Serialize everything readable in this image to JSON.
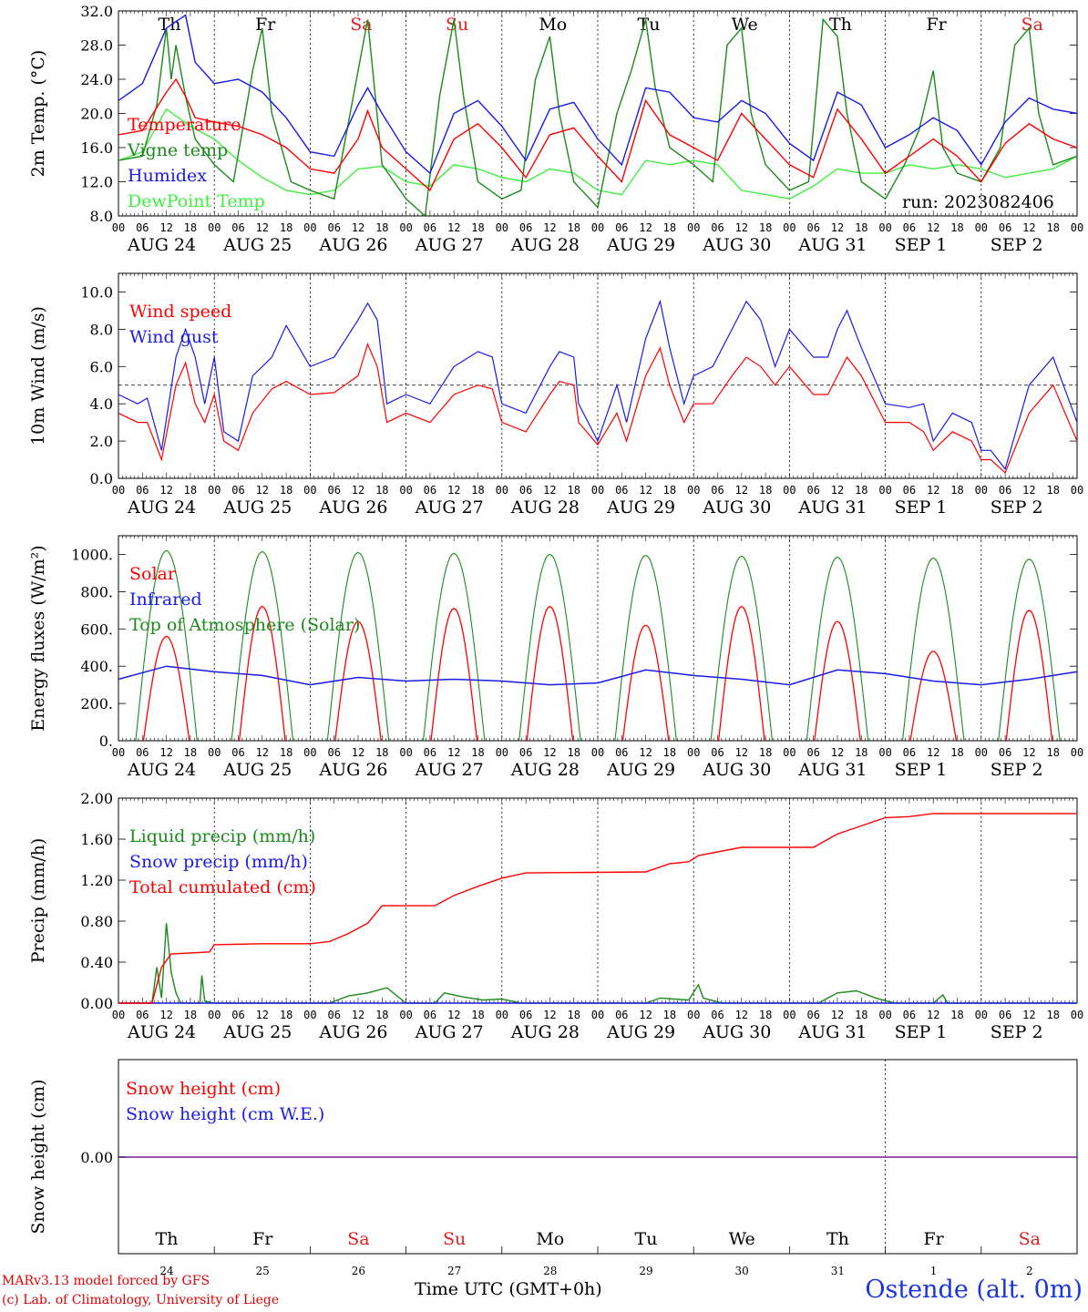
{
  "meta": {
    "run": "run: 2023082406",
    "xlabel": "Time UTC (GMT+0h)",
    "station": "Ostende (alt. 0m)",
    "credit_line1": "MARv3.13 model forced by GFS",
    "credit_line2": "(c) Lab. of Climatology, University of Liege"
  },
  "time_axis": {
    "hour_ticks": [
      "00",
      "06",
      "12",
      "18"
    ],
    "days": [
      "AUG 24",
      "AUG 25",
      "AUG 26",
      "AUG 27",
      "AUG 28",
      "AUG 29",
      "AUG 30",
      "AUG 31",
      "SEP 1",
      "SEP 2"
    ],
    "weekdays": [
      "Th",
      "Fr",
      "Sa",
      "Su",
      "Mo",
      "Tu",
      "We",
      "Th",
      "Fr",
      "Sa"
    ],
    "weekend_days": [
      "Sa",
      "Su"
    ],
    "day_numbers": [
      "24",
      "25",
      "26",
      "27",
      "28",
      "29",
      "30",
      "31",
      "1",
      "2"
    ]
  },
  "colors": {
    "red": "#ff0000",
    "green": "#1a8a1a",
    "blue": "#1a1ae6",
    "lime": "#3ef03e",
    "purple": "#7a1a9a",
    "weekend": "#e02020"
  },
  "chart_data": [
    {
      "type": "line",
      "ylabel": "2m Temp. (°C)",
      "ylim": [
        8,
        32
      ],
      "yticks": [
        "8.0",
        "12.0",
        "16.0",
        "20.0",
        "24.0",
        "28.0",
        "32.0"
      ],
      "x_unit": "day index from Aug 24 00 UTC",
      "series": [
        {
          "name": "Temperature",
          "color": "red",
          "x": [
            0,
            0.25,
            0.5,
            0.6,
            0.7,
            0.8,
            1,
            1.25,
            1.5,
            1.75,
            2,
            2.25,
            2.5,
            2.6,
            2.75,
            3,
            3.25,
            3.5,
            3.75,
            4,
            4.25,
            4.5,
            4.75,
            5,
            5.25,
            5.5,
            5.75,
            6,
            6.25,
            6.5,
            6.75,
            7,
            7.25,
            7.5,
            7.75,
            8,
            8.25,
            8.5,
            8.75,
            9,
            9.25,
            9.5,
            9.75,
            10
          ],
          "y": [
            17.5,
            18.0,
            22.5,
            24.0,
            22.0,
            19.5,
            19.0,
            18.5,
            17.5,
            16.0,
            13.5,
            13.0,
            17.0,
            20.3,
            16.0,
            13.5,
            11.0,
            17.0,
            18.8,
            16.0,
            12.5,
            17.5,
            18.3,
            15.0,
            12.0,
            21.5,
            17.5,
            16.0,
            14.5,
            20.0,
            17.0,
            14.0,
            12.5,
            20.5,
            17.0,
            13.0,
            15.0,
            17.0,
            15.0,
            12.0,
            16.5,
            18.8,
            17.0,
            16.0
          ]
        },
        {
          "name": "Vigne temp",
          "color": "green",
          "x": [
            0,
            0.25,
            0.4,
            0.5,
            0.55,
            0.6,
            0.7,
            0.8,
            1,
            1.2,
            1.4,
            1.5,
            1.6,
            1.8,
            2,
            2.25,
            2.4,
            2.5,
            2.6,
            2.75,
            3,
            3.2,
            3.35,
            3.5,
            3.6,
            3.75,
            4,
            4.2,
            4.35,
            4.5,
            4.6,
            4.75,
            5,
            5.2,
            5.35,
            5.5,
            5.6,
            5.75,
            6,
            6.2,
            6.35,
            6.5,
            6.6,
            6.75,
            7,
            7.2,
            7.35,
            7.5,
            7.6,
            7.75,
            8,
            8.2,
            8.35,
            8.5,
            8.6,
            8.75,
            9,
            9.2,
            9.35,
            9.5,
            9.6,
            9.75,
            10
          ],
          "y": [
            14.5,
            15.0,
            21.0,
            30.0,
            24.0,
            28.0,
            22.0,
            17.0,
            14.0,
            12.0,
            25.0,
            30.0,
            20.0,
            12.0,
            11.0,
            10.0,
            19.0,
            25.0,
            31.0,
            14.0,
            10.0,
            8.0,
            22.0,
            31.0,
            22.0,
            12.0,
            10.0,
            11.0,
            24.0,
            29.0,
            20.0,
            12.0,
            9.0,
            20.0,
            25.0,
            31.0,
            23.0,
            16.0,
            14.0,
            12.0,
            28.0,
            30.0,
            20.0,
            14.0,
            11.0,
            12.0,
            31.0,
            29.0,
            20.0,
            12.0,
            10.0,
            14.0,
            18.0,
            25.0,
            16.0,
            13.0,
            12.0,
            16.0,
            28.0,
            30.0,
            20.0,
            14.0,
            15.0
          ]
        },
        {
          "name": "Humidex",
          "color": "blue",
          "x": [
            0,
            0.25,
            0.5,
            0.7,
            0.8,
            1,
            1.25,
            1.5,
            1.75,
            2,
            2.25,
            2.5,
            2.6,
            2.75,
            3,
            3.25,
            3.5,
            3.75,
            4,
            4.25,
            4.5,
            4.75,
            5,
            5.25,
            5.5,
            5.75,
            6,
            6.25,
            6.5,
            6.75,
            7,
            7.25,
            7.5,
            7.75,
            8,
            8.25,
            8.5,
            8.75,
            9,
            9.25,
            9.5,
            9.75,
            10
          ],
          "y": [
            21.5,
            23.5,
            30.0,
            31.5,
            26.0,
            23.5,
            24.0,
            22.5,
            19.5,
            15.5,
            15.0,
            21.0,
            23.0,
            20.0,
            15.5,
            13.0,
            20.0,
            21.5,
            18.5,
            14.5,
            20.5,
            21.3,
            17.0,
            14.0,
            23.0,
            22.5,
            19.5,
            19.0,
            21.5,
            20.0,
            16.5,
            14.5,
            22.5,
            21.0,
            16.0,
            17.5,
            19.5,
            18.0,
            14.0,
            19.0,
            21.8,
            20.5,
            20.0
          ]
        },
        {
          "name": "DewPoint Temp",
          "color": "lime",
          "x": [
            0,
            0.25,
            0.5,
            0.75,
            1,
            1.25,
            1.5,
            1.75,
            2,
            2.25,
            2.5,
            2.75,
            3,
            3.25,
            3.5,
            3.75,
            4,
            4.25,
            4.5,
            4.75,
            5,
            5.25,
            5.5,
            5.75,
            6,
            6.25,
            6.5,
            6.75,
            7,
            7.25,
            7.5,
            7.75,
            8,
            8.25,
            8.5,
            8.75,
            9,
            9.25,
            9.5,
            9.75,
            10
          ],
          "y": [
            14.5,
            15.5,
            20.5,
            18.5,
            17.0,
            14.5,
            12.5,
            11.0,
            10.5,
            11.0,
            13.5,
            13.8,
            12.0,
            11.5,
            14.0,
            13.5,
            12.5,
            12.0,
            13.5,
            13.0,
            11.0,
            10.5,
            14.5,
            14.0,
            14.5,
            14.0,
            11.0,
            10.5,
            10.0,
            11.5,
            13.5,
            13.0,
            13.0,
            14.0,
            13.5,
            14.0,
            13.5,
            12.5,
            13.0,
            13.5,
            15.0
          ]
        }
      ]
    },
    {
      "type": "line",
      "ylabel": "10m Wind (m/s)",
      "ylim": [
        0,
        11
      ],
      "yticks": [
        "0.0",
        "2.0",
        "4.0",
        "6.0",
        "8.0",
        "10.0"
      ],
      "reference_line": 5.0,
      "series": [
        {
          "name": "Wind speed",
          "color": "red",
          "x": [
            0,
            0.2,
            0.3,
            0.45,
            0.6,
            0.7,
            0.8,
            0.9,
            1,
            1.1,
            1.25,
            1.4,
            1.6,
            1.75,
            2,
            2.25,
            2.5,
            2.6,
            2.7,
            2.8,
            3,
            3.25,
            3.5,
            3.75,
            3.9,
            4,
            4.25,
            4.5,
            4.6,
            4.75,
            4.8,
            5,
            5.2,
            5.3,
            5.5,
            5.65,
            5.75,
            5.9,
            6,
            6.2,
            6.4,
            6.55,
            6.7,
            6.85,
            7,
            7.25,
            7.4,
            7.5,
            7.6,
            7.75,
            8,
            8.25,
            8.4,
            8.5,
            8.7,
            8.9,
            9,
            9.1,
            9.25,
            9.5,
            9.75,
            10
          ],
          "y": [
            3.5,
            3.0,
            3.0,
            1.0,
            5.0,
            6.2,
            4.0,
            3.0,
            4.5,
            2.0,
            1.5,
            3.5,
            4.8,
            5.2,
            4.5,
            4.6,
            5.5,
            7.2,
            6.0,
            3.0,
            3.5,
            3.0,
            4.5,
            5.0,
            4.8,
            3.0,
            2.5,
            4.5,
            5.2,
            5.0,
            3.0,
            1.8,
            3.5,
            2.0,
            5.5,
            7.0,
            5.0,
            3.0,
            4.0,
            4.0,
            5.5,
            6.5,
            6.0,
            5.0,
            6.0,
            4.5,
            4.5,
            5.5,
            6.5,
            5.5,
            3.0,
            3.0,
            2.5,
            1.5,
            2.5,
            2.0,
            1.0,
            1.0,
            0.3,
            3.5,
            5.0,
            2.0
          ]
        },
        {
          "name": "Wind gust",
          "color": "blue",
          "x": [
            0,
            0.2,
            0.3,
            0.45,
            0.6,
            0.7,
            0.8,
            0.9,
            1,
            1.1,
            1.25,
            1.4,
            1.6,
            1.75,
            2,
            2.25,
            2.5,
            2.6,
            2.7,
            2.8,
            3,
            3.25,
            3.5,
            3.75,
            3.9,
            4,
            4.25,
            4.5,
            4.6,
            4.75,
            4.8,
            5,
            5.2,
            5.3,
            5.5,
            5.65,
            5.75,
            5.9,
            6,
            6.2,
            6.4,
            6.55,
            6.7,
            6.85,
            7,
            7.25,
            7.4,
            7.5,
            7.6,
            7.75,
            8,
            8.25,
            8.4,
            8.5,
            8.7,
            8.9,
            9,
            9.1,
            9.25,
            9.5,
            9.75,
            10
          ],
          "y": [
            4.5,
            4.0,
            4.3,
            1.5,
            6.5,
            8.0,
            6.5,
            4.0,
            6.5,
            2.5,
            2.0,
            5.5,
            6.5,
            8.2,
            6.0,
            6.5,
            8.5,
            9.4,
            8.5,
            4.0,
            4.5,
            4.0,
            6.0,
            6.8,
            6.5,
            4.0,
            3.5,
            6.0,
            6.8,
            6.5,
            4.0,
            2.0,
            5.0,
            3.0,
            7.5,
            9.5,
            7.0,
            4.0,
            5.5,
            6.0,
            8.0,
            9.5,
            8.5,
            6.0,
            8.0,
            6.5,
            6.5,
            8.0,
            9.0,
            7.0,
            4.0,
            3.8,
            4.0,
            2.0,
            3.5,
            3.0,
            1.5,
            1.5,
            0.5,
            5.0,
            6.5,
            3.0
          ]
        }
      ]
    },
    {
      "type": "line",
      "ylabel": "Energy fluxes (W/m²)",
      "ylim": [
        0,
        1100
      ],
      "yticks": [
        "0.",
        "200.",
        "400.",
        "600.",
        "800.",
        "1000."
      ],
      "series": [
        {
          "name": "Solar",
          "color": "red",
          "daily_peak": [
            560,
            720,
            640,
            710,
            720,
            620,
            720,
            640,
            480,
            700
          ]
        },
        {
          "name": "Infrared",
          "color": "blue",
          "x": [
            0,
            0.5,
            1,
            1.5,
            2,
            2.5,
            3,
            3.5,
            4,
            4.5,
            5,
            5.5,
            6,
            6.5,
            7,
            7.5,
            8,
            8.5,
            9,
            9.5,
            10
          ],
          "y": [
            330,
            400,
            370,
            350,
            300,
            340,
            320,
            330,
            320,
            300,
            310,
            380,
            350,
            330,
            300,
            380,
            360,
            320,
            300,
            330,
            370
          ]
        },
        {
          "name": "Top of Atmosphere (Solar)",
          "color": "green",
          "daily_peak": [
            1020,
            1015,
            1010,
            1005,
            1000,
            995,
            990,
            985,
            980,
            975
          ]
        }
      ]
    },
    {
      "type": "line",
      "ylabel": "Precip",
      "ylabel_units": "(mm/h)",
      "ylim": [
        0,
        2.0
      ],
      "yticks": [
        "0.00",
        "0.40",
        "0.80",
        "1.20",
        "1.60",
        "2.00"
      ],
      "series": [
        {
          "name": "Liquid precip (mm/h)",
          "color": "green",
          "x": [
            0,
            0.35,
            0.4,
            0.45,
            0.5,
            0.55,
            0.6,
            0.65,
            0.85,
            0.87,
            0.9,
            1,
            2.2,
            2.4,
            2.6,
            2.8,
            3.0,
            3.3,
            3.4,
            3.6,
            3.8,
            4,
            4.2,
            4.3,
            5.5,
            5.65,
            5.95,
            6.05,
            6.1,
            6.3,
            7.3,
            7.5,
            7.7,
            7.9,
            8.1,
            8.3,
            8.5,
            8.6,
            8.65,
            8.7,
            10
          ],
          "y": [
            0,
            0,
            0.35,
            0.05,
            0.78,
            0.3,
            0.1,
            0,
            0,
            0.27,
            0.02,
            0,
            0,
            0.07,
            0.1,
            0.15,
            0,
            0,
            0.1,
            0.06,
            0.03,
            0.04,
            0,
            0,
            0,
            0.05,
            0.03,
            0.18,
            0.05,
            0,
            0,
            0.1,
            0.12,
            0.05,
            0,
            0,
            0,
            0.08,
            0,
            0,
            0
          ]
        },
        {
          "name": "Snow precip (mm/h)",
          "color": "blue",
          "x": [
            0,
            10
          ],
          "y": [
            0,
            0
          ]
        },
        {
          "name": "Total cumulated (cm)",
          "color": "red",
          "x": [
            0,
            0.35,
            0.45,
            0.55,
            0.95,
            1.0,
            1.5,
            2.0,
            2.2,
            2.4,
            2.6,
            2.75,
            3.3,
            3.5,
            3.75,
            4,
            4.25,
            5.5,
            5.75,
            5.95,
            6.05,
            6.5,
            7.0,
            7.25,
            7.5,
            8.0,
            8.25,
            8.5,
            9,
            10
          ],
          "y": [
            0,
            0,
            0.35,
            0.48,
            0.5,
            0.57,
            0.58,
            0.58,
            0.6,
            0.68,
            0.78,
            0.95,
            0.95,
            1.05,
            1.14,
            1.22,
            1.27,
            1.28,
            1.36,
            1.38,
            1.44,
            1.52,
            1.52,
            1.52,
            1.65,
            1.81,
            1.82,
            1.85,
            1.85,
            1.85
          ]
        }
      ]
    },
    {
      "type": "line",
      "ylabel": "Snow height (cm)",
      "yticks": [
        "0.00"
      ],
      "series": [
        {
          "name": "Snow height (cm)",
          "color": "red",
          "x": [
            0,
            10
          ],
          "y": [
            0,
            0
          ]
        },
        {
          "name": "Snow height (cm W.E.)",
          "color": "blue",
          "x": [
            0,
            10
          ],
          "y": [
            0,
            0
          ]
        }
      ]
    }
  ]
}
